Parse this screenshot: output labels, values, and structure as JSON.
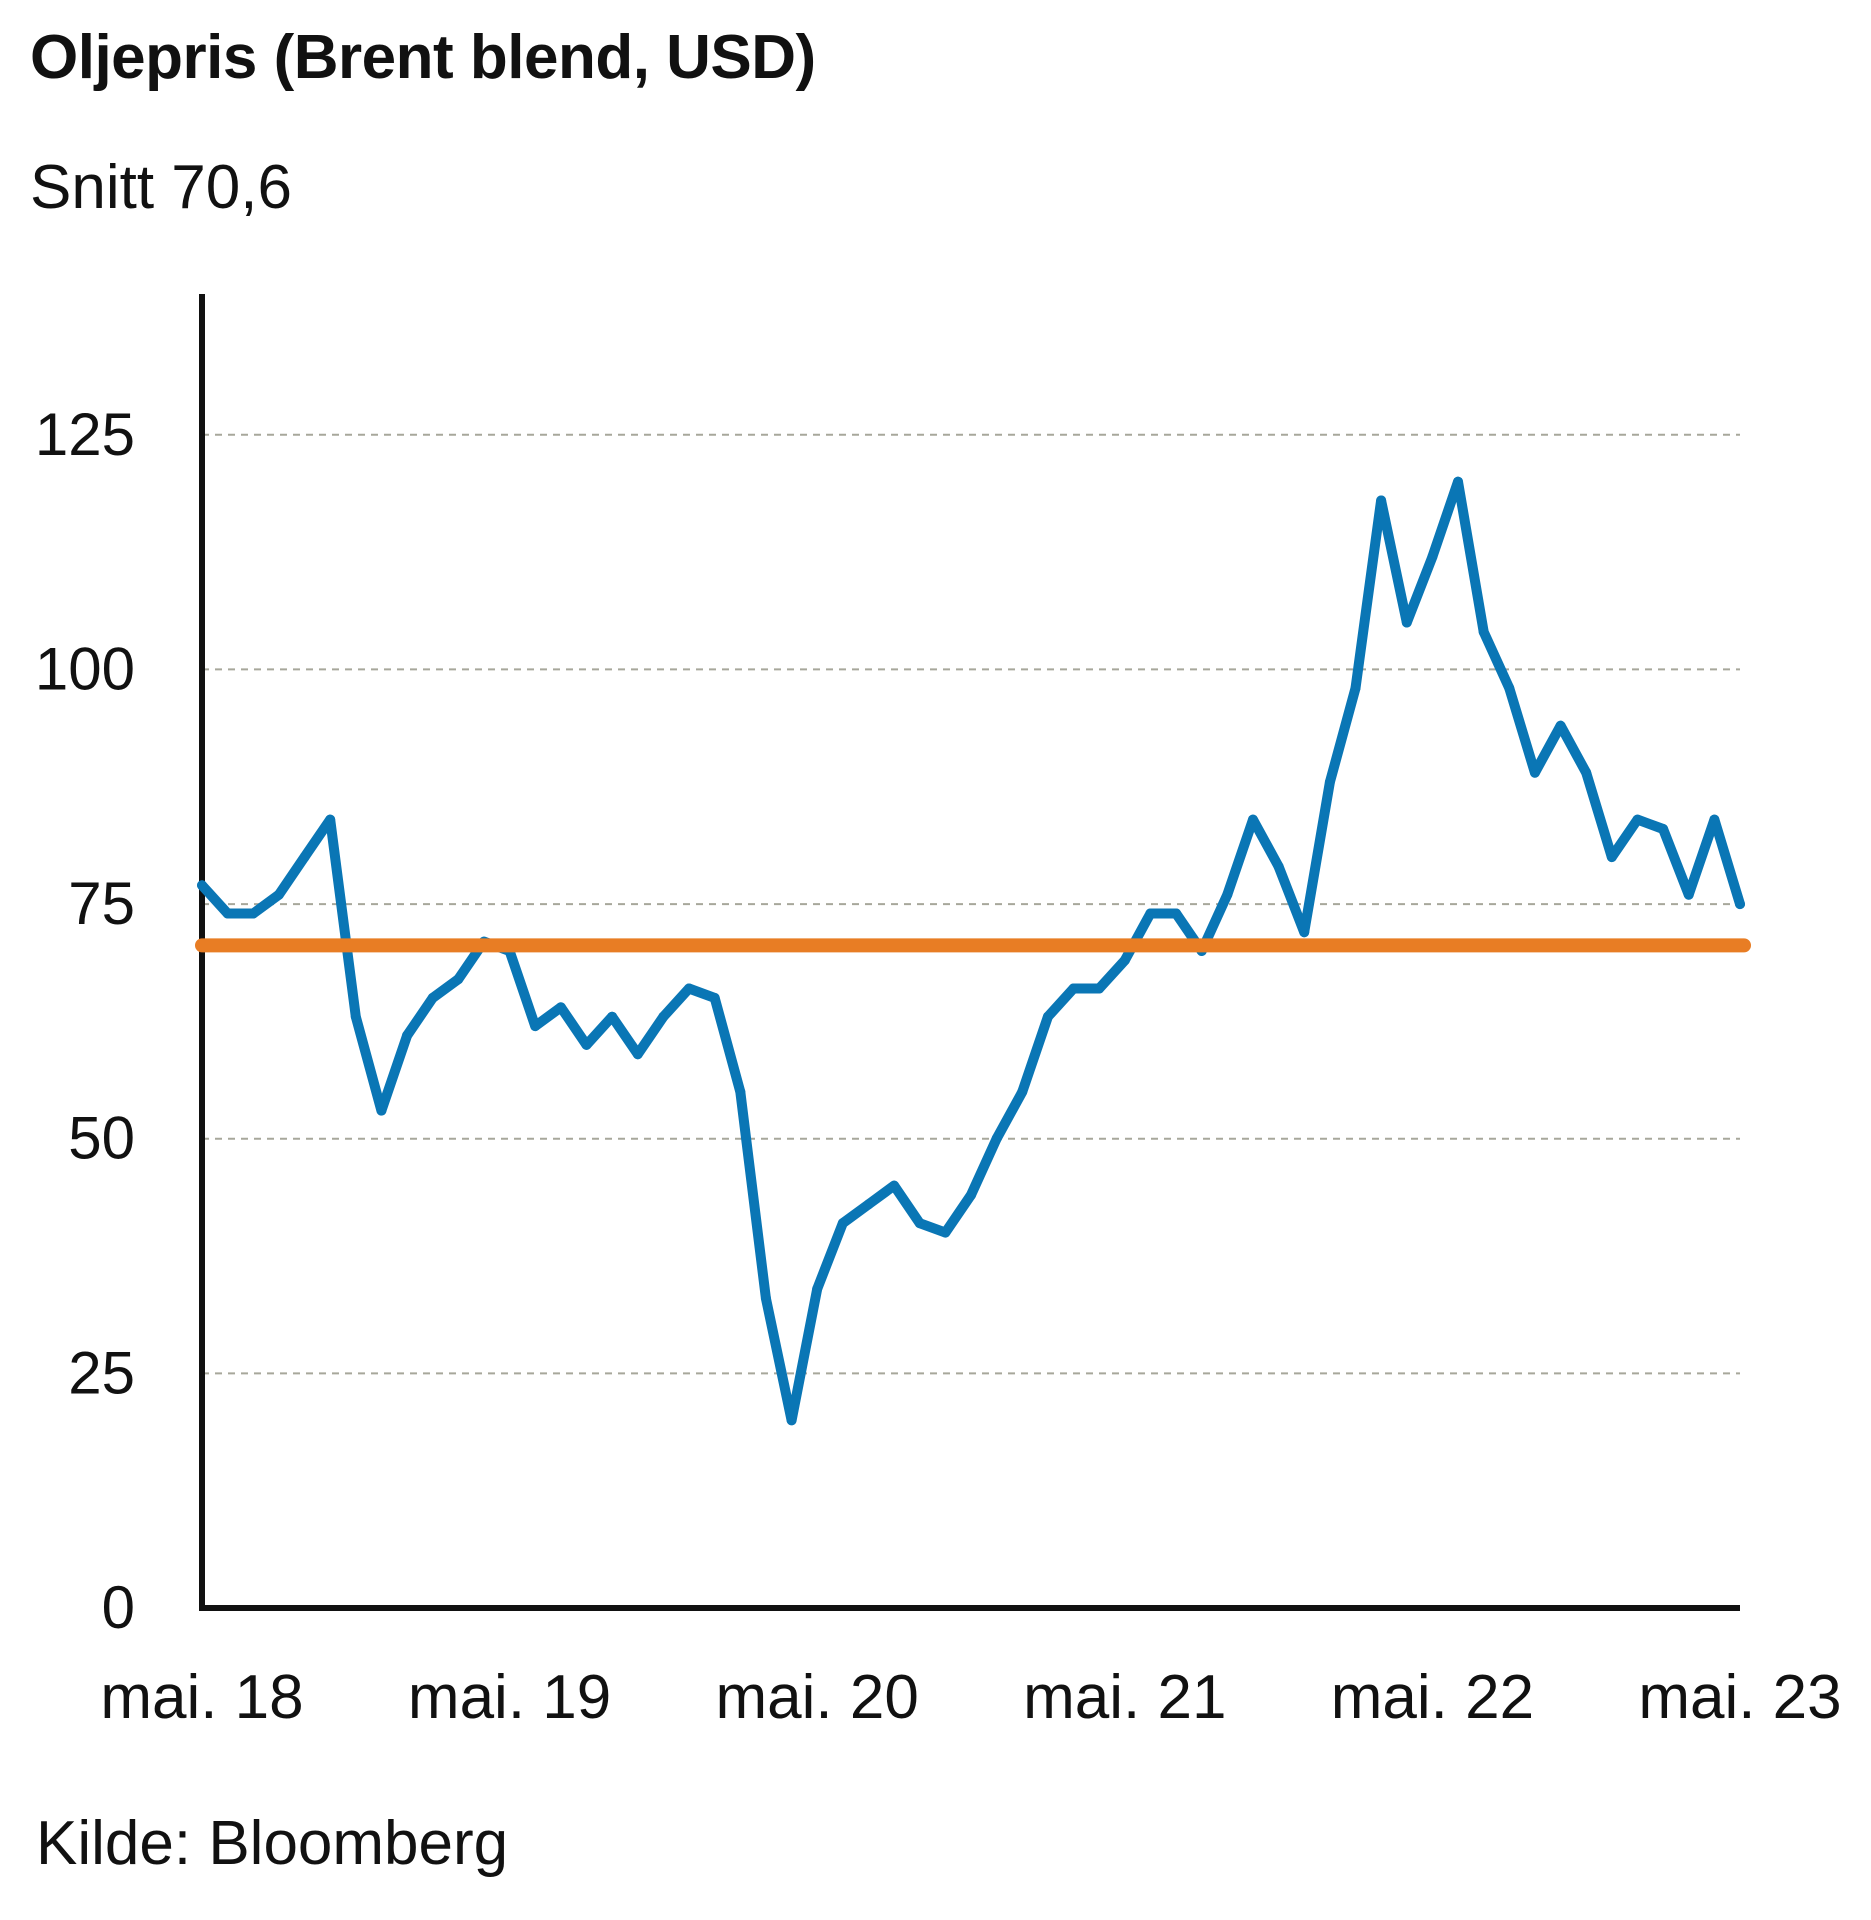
{
  "chart_data": {
    "type": "line",
    "title": "Oljepris (Brent blend, USD)",
    "subtitle": "Snitt 70,6",
    "source": "Kilde: Bloomberg",
    "xlabel": "",
    "ylabel": "",
    "ylim": [
      0,
      140
    ],
    "yticks": [
      0,
      25,
      50,
      75,
      100,
      125
    ],
    "x_range": [
      "2018-05",
      "2023-05"
    ],
    "x_ticks": [
      {
        "label": "mai. 18",
        "x": "2018-05"
      },
      {
        "label": "mai. 19",
        "x": "2019-05"
      },
      {
        "label": "mai. 20",
        "x": "2020-05"
      },
      {
        "label": "mai. 21",
        "x": "2021-05"
      },
      {
        "label": "mai. 22",
        "x": "2022-05"
      },
      {
        "label": "mai. 23",
        "x": "2023-05"
      }
    ],
    "grid": "horizontal dashed",
    "series": [
      {
        "name": "",
        "color": "#0a76b5",
        "points": [
          [
            "2018-05",
            77
          ],
          [
            "2018-06",
            74
          ],
          [
            "2018-07",
            74
          ],
          [
            "2018-08",
            76
          ],
          [
            "2018-09",
            80
          ],
          [
            "2018-10",
            84
          ],
          [
            "2018-11",
            63
          ],
          [
            "2018-12",
            53
          ],
          [
            "2019-01",
            61
          ],
          [
            "2019-02",
            65
          ],
          [
            "2019-03",
            67
          ],
          [
            "2019-04",
            71
          ],
          [
            "2019-05",
            70
          ],
          [
            "2019-06",
            62
          ],
          [
            "2019-07",
            64
          ],
          [
            "2019-08",
            60
          ],
          [
            "2019-09",
            63
          ],
          [
            "2019-10",
            59
          ],
          [
            "2019-11",
            63
          ],
          [
            "2019-12",
            66
          ],
          [
            "2020-01",
            65
          ],
          [
            "2020-02",
            55
          ],
          [
            "2020-03",
            33
          ],
          [
            "2020-04",
            20
          ],
          [
            "2020-05",
            34
          ],
          [
            "2020-06",
            41
          ],
          [
            "2020-07",
            43
          ],
          [
            "2020-08",
            45
          ],
          [
            "2020-09",
            41
          ],
          [
            "2020-10",
            40
          ],
          [
            "2020-11",
            44
          ],
          [
            "2020-12",
            50
          ],
          [
            "2021-01",
            55
          ],
          [
            "2021-02",
            63
          ],
          [
            "2021-03",
            66
          ],
          [
            "2021-04",
            66
          ],
          [
            "2021-05",
            69
          ],
          [
            "2021-06",
            74
          ],
          [
            "2021-07",
            74
          ],
          [
            "2021-08",
            70
          ],
          [
            "2021-09",
            76
          ],
          [
            "2021-10",
            84
          ],
          [
            "2021-11",
            79
          ],
          [
            "2021-12",
            72
          ],
          [
            "2022-01",
            88
          ],
          [
            "2022-02",
            98
          ],
          [
            "2022-03",
            118
          ],
          [
            "2022-04",
            105
          ],
          [
            "2022-05",
            112
          ],
          [
            "2022-06",
            120
          ],
          [
            "2022-07",
            104
          ],
          [
            "2022-08",
            98
          ],
          [
            "2022-09",
            89
          ],
          [
            "2022-10",
            94
          ],
          [
            "2022-11",
            89
          ],
          [
            "2022-12",
            80
          ],
          [
            "2023-01",
            84
          ],
          [
            "2023-02",
            83
          ],
          [
            "2023-03",
            76
          ],
          [
            "2023-04",
            84
          ],
          [
            "2023-05",
            75
          ]
        ]
      }
    ],
    "reference_line": {
      "value": 70.6,
      "color": "#e87d24"
    }
  }
}
